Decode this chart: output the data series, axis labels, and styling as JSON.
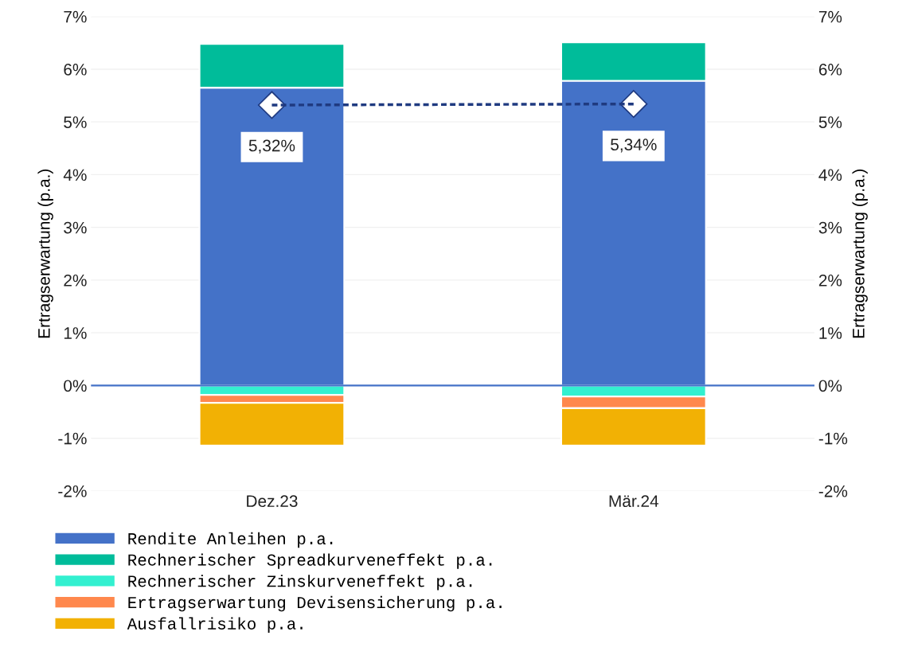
{
  "chart_data": {
    "type": "bar",
    "stacked": true,
    "ylabel": "Ertragserwartung (p.a.)",
    "y2label": "Ertragserwartung (p.a.)",
    "categories": [
      "Dez.23",
      "Mär.24"
    ],
    "series": [
      {
        "name": "Rendite Anleihen p.a.",
        "color": "#4472c8",
        "values": [
          5.65,
          5.78
        ]
      },
      {
        "name": "Rechnerischer Spreadkurveneffekt p.a.",
        "color": "#00bc9a",
        "values": [
          0.83,
          0.73
        ]
      },
      {
        "name": "Rechnerischer Zinskurveneffekt p.a.",
        "color": "#33f0d0",
        "values": [
          -0.18,
          -0.21
        ]
      },
      {
        "name": "Ertragserwartung Devisensicherung p.a.",
        "color": "#ff884d",
        "values": [
          -0.15,
          -0.22
        ]
      },
      {
        "name": "Ausfallrisiko p.a.",
        "color": "#f2b104",
        "values": [
          -0.81,
          -0.71
        ]
      },
      {
        "type": "line",
        "color": "#1f3a80",
        "values": [
          5.32,
          5.34
        ],
        "marker": "diamond",
        "line_style": "dashed",
        "value_labels": [
          "5,32%",
          "5,34%"
        ]
      }
    ],
    "ylim": [
      -2,
      7
    ],
    "y2lim": [
      -2,
      7
    ],
    "yticks": [
      {
        "value": -2,
        "label": "-2%"
      },
      {
        "value": -1,
        "label": "-1%"
      },
      {
        "value": 0,
        "label": "0%"
      },
      {
        "value": 1,
        "label": "1%"
      },
      {
        "value": 2,
        "label": "2%"
      },
      {
        "value": 3,
        "label": "3%"
      },
      {
        "value": 4,
        "label": "4%"
      },
      {
        "value": 5,
        "label": "5%"
      },
      {
        "value": 6,
        "label": "6%"
      },
      {
        "value": 7,
        "label": "7%"
      }
    ],
    "y2ticks": [
      {
        "value": -2,
        "label": "-2%"
      },
      {
        "value": -1,
        "label": "-1%"
      },
      {
        "value": 0,
        "label": "0%"
      },
      {
        "value": 1,
        "label": "1%"
      },
      {
        "value": 2,
        "label": "2%"
      },
      {
        "value": 3,
        "label": "3%"
      },
      {
        "value": 4,
        "label": "4%"
      },
      {
        "value": 5,
        "label": "5%"
      },
      {
        "value": 6,
        "label": "6%"
      },
      {
        "value": 7,
        "label": "7%"
      }
    ],
    "ref_lines": [
      {
        "axis": "y",
        "value": 0,
        "color": "#4472c8"
      }
    ],
    "grid": "y",
    "legend": "bottom"
  }
}
